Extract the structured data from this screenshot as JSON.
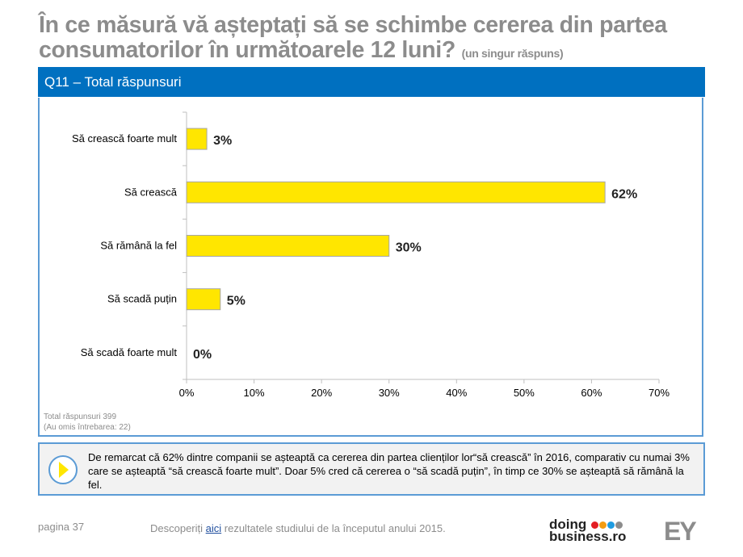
{
  "title": {
    "main": "În ce măsură vă așteptați să se schimbe cererea din partea consumatorilor în următoarele 12 luni?",
    "sub": "(un singur răspuns)"
  },
  "band": {
    "label": "Q11 – Total răspunsuri"
  },
  "chart_data": {
    "type": "bar",
    "orientation": "horizontal",
    "categories": [
      "Să crească foarte mult",
      "Să crească",
      "Să rămână la fel",
      "Să scadă puțin",
      "Să scadă foarte mult"
    ],
    "values": [
      3,
      62,
      30,
      5,
      0
    ],
    "data_labels": [
      "3%",
      "62%",
      "30%",
      "5%",
      "0%"
    ],
    "xlim": [
      0,
      70
    ],
    "xticks": [
      "0%",
      "10%",
      "20%",
      "30%",
      "40%",
      "50%",
      "60%",
      "70%"
    ],
    "bar_color": "#ffe600",
    "grid": false
  },
  "notes": {
    "total": "Total răspunsuri 399",
    "omitted": "(Au omis întrebarea: 22)"
  },
  "callout": {
    "text": "De remarcat că 62% dintre companii se așteaptă ca cererea din partea clienților lor“să crească” în 2016, comparativ cu numai 3% care se așteaptă “să crească foarte mult”. Doar 5% cred că cererea o “să scadă puțin”, în timp ce 30% se așteaptă să rămână la fel."
  },
  "footer": {
    "page": "pagina 37",
    "text_before": "Descoperiți ",
    "link": "aici",
    "text_after": " rezultatele studiului de la începutul anului 2015.",
    "logo_line1": "doing",
    "logo_line2": "business.ro",
    "logo_dots": [
      "#e31e24",
      "#f39c12",
      "#1e9be0",
      "#8c8c8c"
    ],
    "ey": "EY"
  }
}
